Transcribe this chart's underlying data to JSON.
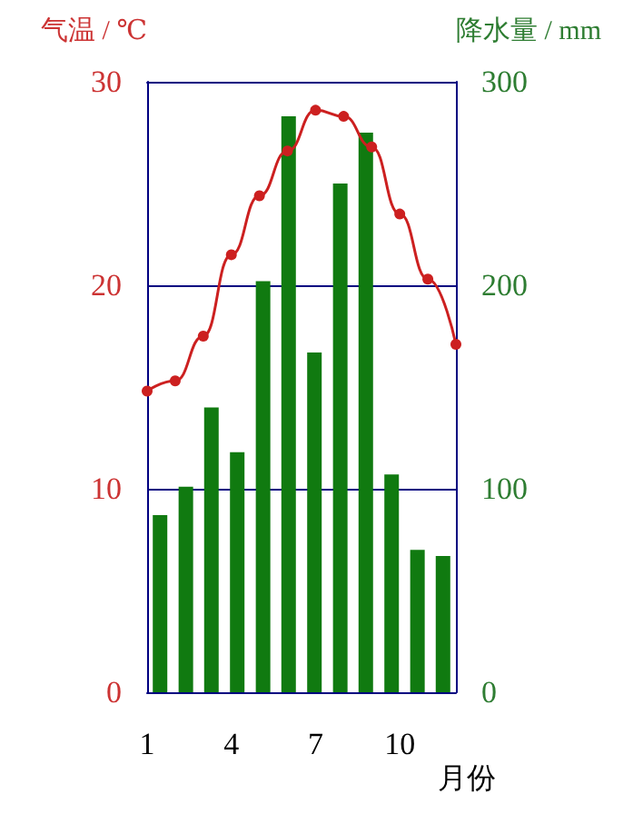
{
  "chart_data": {
    "type": "bar",
    "xlabel": "月份",
    "ylabel": "气温 / ℃",
    "y2label": "降水量 / mm",
    "x": [
      1,
      2,
      3,
      4,
      5,
      6,
      7,
      8,
      9,
      10,
      11,
      12
    ],
    "xlim": [
      1,
      12
    ],
    "xticks": [
      1,
      4,
      7,
      10
    ],
    "ylim": [
      0,
      30
    ],
    "yticks": [
      0,
      10,
      20,
      30
    ],
    "y2lim": [
      0,
      300
    ],
    "y2ticks": [
      0,
      100,
      200,
      300
    ],
    "grid": "y",
    "marker": "circle",
    "line_style": "solid",
    "series": [
      {
        "axis": "y2",
        "color": "#107a10",
        "x": [
          1.46,
          2.38,
          3.29,
          4.21,
          5.13,
          6.04,
          6.96,
          7.88,
          8.79,
          9.71,
          10.63,
          11.54
        ],
        "values": [
          87,
          101,
          140,
          118,
          202,
          283,
          167,
          250,
          275,
          107,
          70,
          67
        ]
      },
      {
        "type": "line",
        "axis": "y",
        "color": "#cc2020",
        "values": [
          14.8,
          15.3,
          17.5,
          21.5,
          24.4,
          26.6,
          28.6,
          28.3,
          26.8,
          23.5,
          20.3,
          17.1
        ]
      }
    ]
  }
}
